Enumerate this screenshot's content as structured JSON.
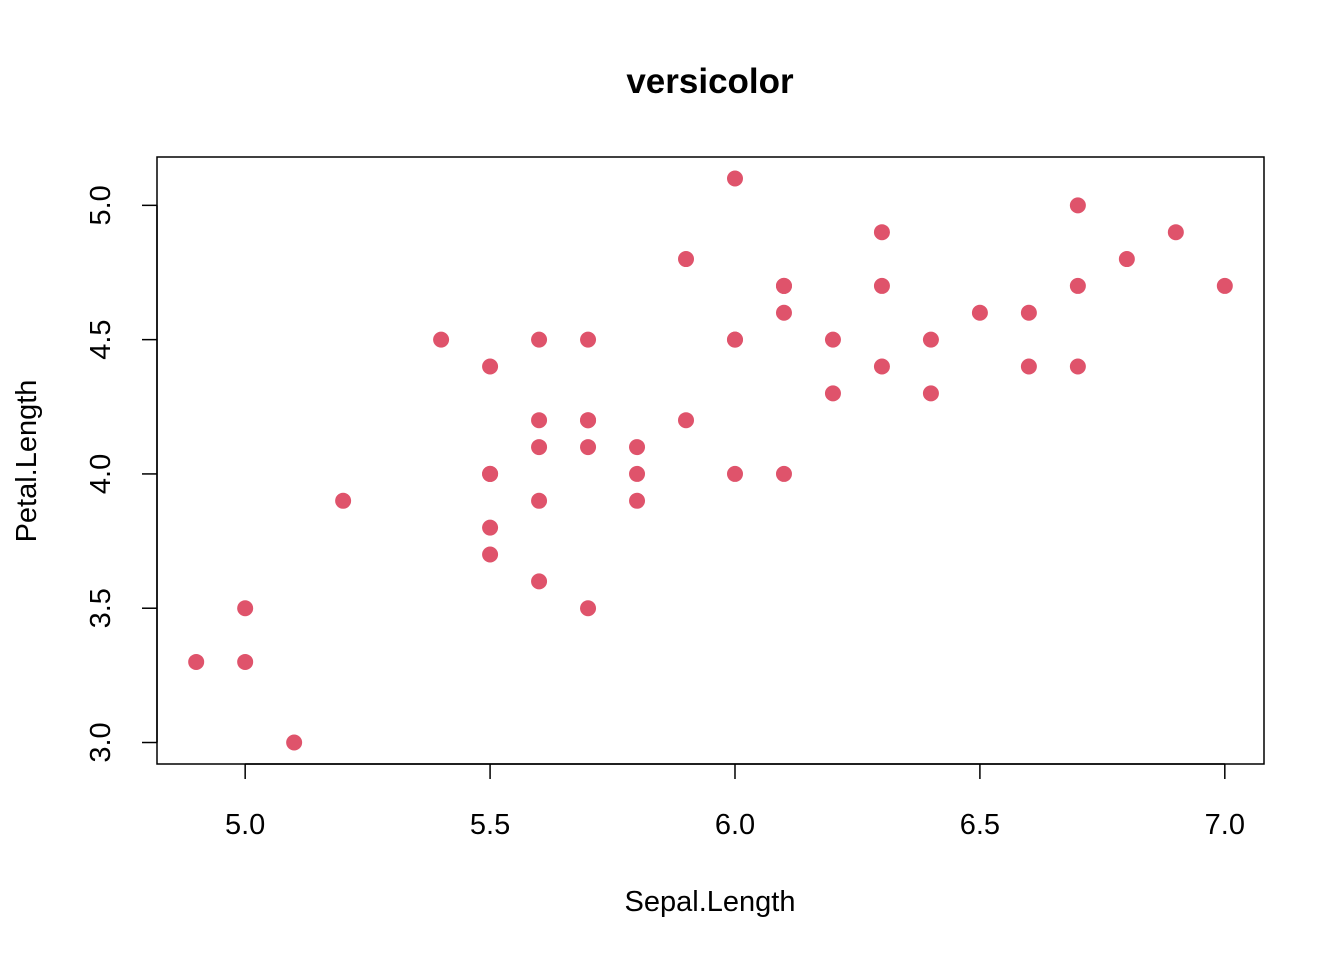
{
  "chart_data": {
    "type": "scatter",
    "title": "versicolor",
    "xlabel": "Sepal.Length",
    "ylabel": "Petal.Length",
    "xlim": [
      4.82,
      7.08
    ],
    "ylim": [
      2.92,
      5.18
    ],
    "x_ticks": [
      5.0,
      5.5,
      6.0,
      6.5,
      7.0
    ],
    "y_ticks": [
      3.0,
      3.5,
      4.0,
      4.5,
      5.0
    ],
    "x_tick_labels": [
      "5.0",
      "5.5",
      "6.0",
      "6.5",
      "7.0"
    ],
    "y_tick_labels": [
      "3.0",
      "3.5",
      "4.0",
      "4.5",
      "5.0"
    ],
    "grid": false,
    "marker_color": "#DF536B",
    "series": [
      {
        "x": [
          7.0,
          6.4,
          6.9,
          5.5,
          6.5,
          5.7,
          6.3,
          4.9,
          6.6,
          5.2,
          5.0,
          5.9,
          6.0,
          6.1,
          5.6,
          6.7,
          5.6,
          5.8,
          6.2,
          5.6,
          5.9,
          6.1,
          6.3,
          6.1,
          6.4,
          6.6,
          6.8,
          6.7,
          6.0,
          5.7,
          5.5,
          5.5,
          5.8,
          6.0,
          5.4,
          6.0,
          6.7,
          6.3,
          5.6,
          5.5,
          5.5,
          6.1,
          5.8,
          5.0,
          5.6,
          5.7,
          5.7,
          6.2,
          5.1,
          5.7
        ],
        "y": [
          4.7,
          4.5,
          4.9,
          4.0,
          4.6,
          4.5,
          4.7,
          3.3,
          4.6,
          3.9,
          3.5,
          4.2,
          4.0,
          4.7,
          3.6,
          4.4,
          4.5,
          4.1,
          4.5,
          3.9,
          4.8,
          4.0,
          4.9,
          4.7,
          4.3,
          4.4,
          4.8,
          5.0,
          4.5,
          3.5,
          3.8,
          3.7,
          3.9,
          5.1,
          4.5,
          4.5,
          4.7,
          4.4,
          4.1,
          4.0,
          4.4,
          4.6,
          4.0,
          3.3,
          4.2,
          4.2,
          4.2,
          4.3,
          3.0,
          4.1
        ]
      }
    ]
  }
}
